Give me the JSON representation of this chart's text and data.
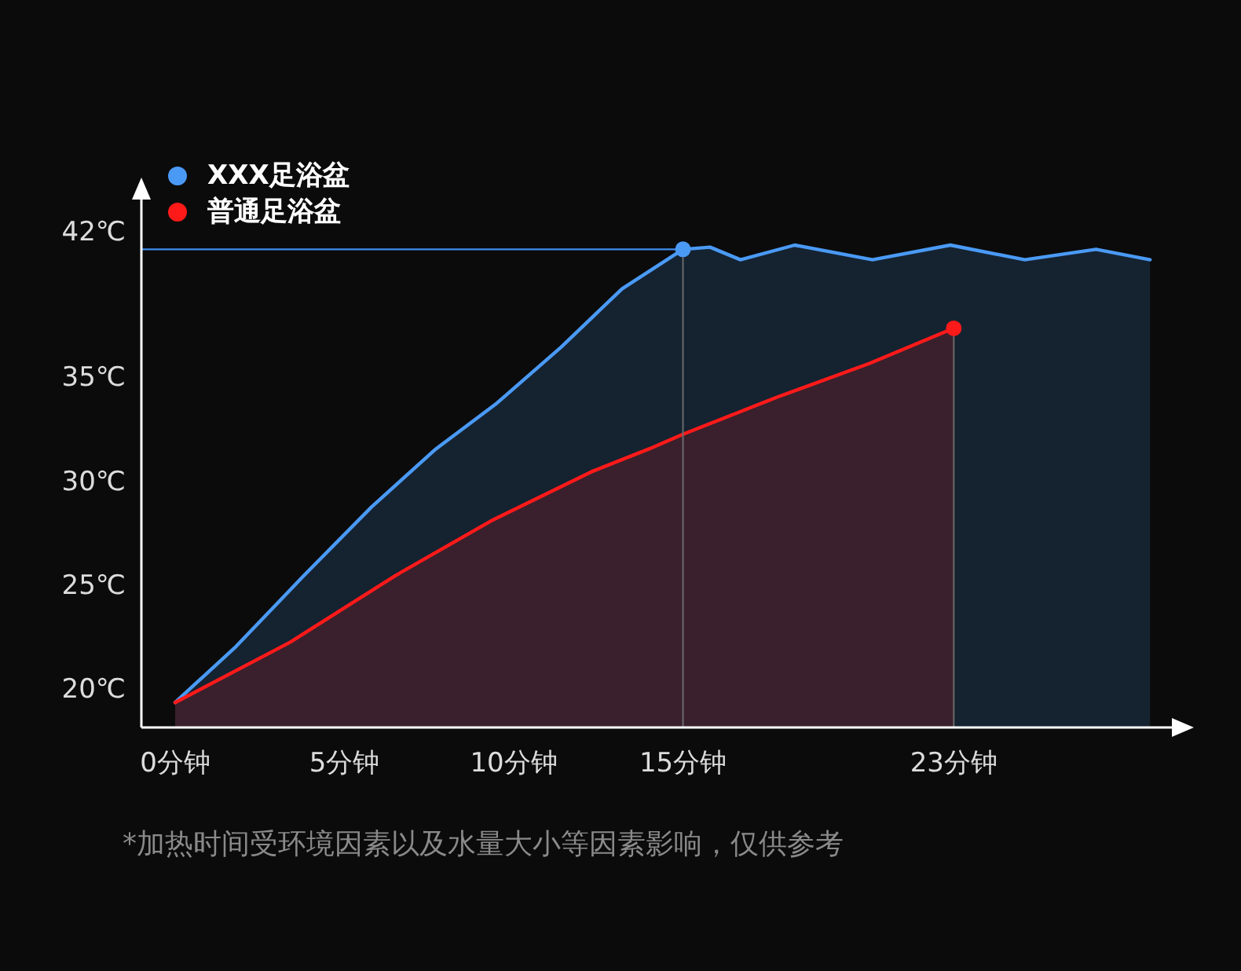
{
  "chart_data": {
    "type": "area",
    "annotations": [
      "*加热时间受环境因素以及水量大小等因素影响，仅供参考"
    ],
    "xlim": [
      -1.0,
      30.0
    ],
    "ylim": [
      18.2,
      44.5
    ],
    "xticks": [
      {
        "value": 0,
        "label": "0分钟"
      },
      {
        "value": 5,
        "label": "5分钟"
      },
      {
        "value": 10,
        "label": "10分钟"
      },
      {
        "value": 15,
        "label": "15分钟"
      },
      {
        "value": 23,
        "label": "23分钟"
      }
    ],
    "yticks": [
      {
        "value": 20,
        "label": "20℃"
      },
      {
        "value": 25,
        "label": "25℃"
      },
      {
        "value": 30,
        "label": "30℃"
      },
      {
        "value": 35,
        "label": "35℃"
      },
      {
        "value": 42,
        "label": "42℃"
      }
    ],
    "legend": "top left",
    "marker": "none",
    "line_style": "solid",
    "ref_lines": [
      {
        "axis": "y",
        "value": 41.2,
        "color": "#3f8ef0"
      },
      {
        "axis": "x",
        "value": 15,
        "color": "#6a6a6a"
      },
      {
        "axis": "x",
        "value": 23,
        "color": "#6a6a6a"
      }
    ],
    "series": [
      {
        "name": "XXX足浴盆",
        "color": "#4a9af5",
        "x": [
          0,
          1.8,
          3.8,
          5.8,
          7.7,
          9.5,
          11.4,
          13.2,
          15,
          15.8,
          16.7,
          18.3,
          20.6,
          22.9,
          25.1,
          27.2,
          28.8
        ],
        "values": [
          19.4,
          22.1,
          25.5,
          28.8,
          31.6,
          33.8,
          36.5,
          39.3,
          41.2,
          41.3,
          40.7,
          41.4,
          40.7,
          41.4,
          40.7,
          41.2,
          40.7
        ]
      },
      {
        "name": "普通足浴盆",
        "color": "#ff1a1a",
        "x": [
          0,
          3.4,
          6.5,
          9.4,
          12.3,
          14.0,
          15,
          17.8,
          20.5,
          23.0
        ],
        "values": [
          19.4,
          22.3,
          25.5,
          28.2,
          30.5,
          31.6,
          32.3,
          34.1,
          35.7,
          37.4
        ]
      },
      {
        "type": "scatter",
        "color": "#4a9af5",
        "marker": "circle",
        "x": [
          15
        ],
        "values": [
          41.2
        ]
      },
      {
        "type": "scatter",
        "color": "#ff1a1a",
        "marker": "circle",
        "x": [
          23
        ],
        "values": [
          37.4
        ]
      }
    ]
  }
}
